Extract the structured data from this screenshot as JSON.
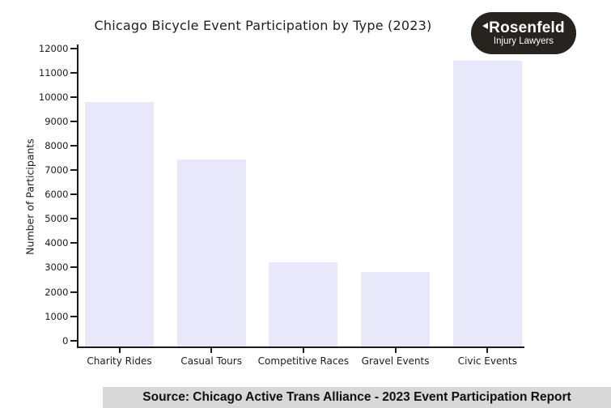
{
  "chart_data": {
    "type": "bar",
    "title": "Chicago Bicycle Event Participation by Type (2023)",
    "categories": [
      "Charity Rides",
      "Casual Tours",
      "Competitive Races",
      "Gravel Events",
      "Civic Events"
    ],
    "values": [
      9800,
      7450,
      3200,
      2800,
      11500
    ],
    "xlabel": "",
    "ylabel": "Number of Participants",
    "ylim": [
      0,
      12000
    ],
    "ytick_step": 1000,
    "grid": false,
    "legend": false,
    "bar_color": "#e8e8fa",
    "axis_color": "#1b1b1b"
  },
  "logo": {
    "line1": "Rosenfeld",
    "line2": "Injury Lawyers",
    "bg_color": "#27241f",
    "text_color": "#ffffff"
  },
  "caption": {
    "text": "Source: Chicago Active Trans Alliance - 2023 Event Participation Report",
    "bg_color": "#d8d8d8"
  }
}
